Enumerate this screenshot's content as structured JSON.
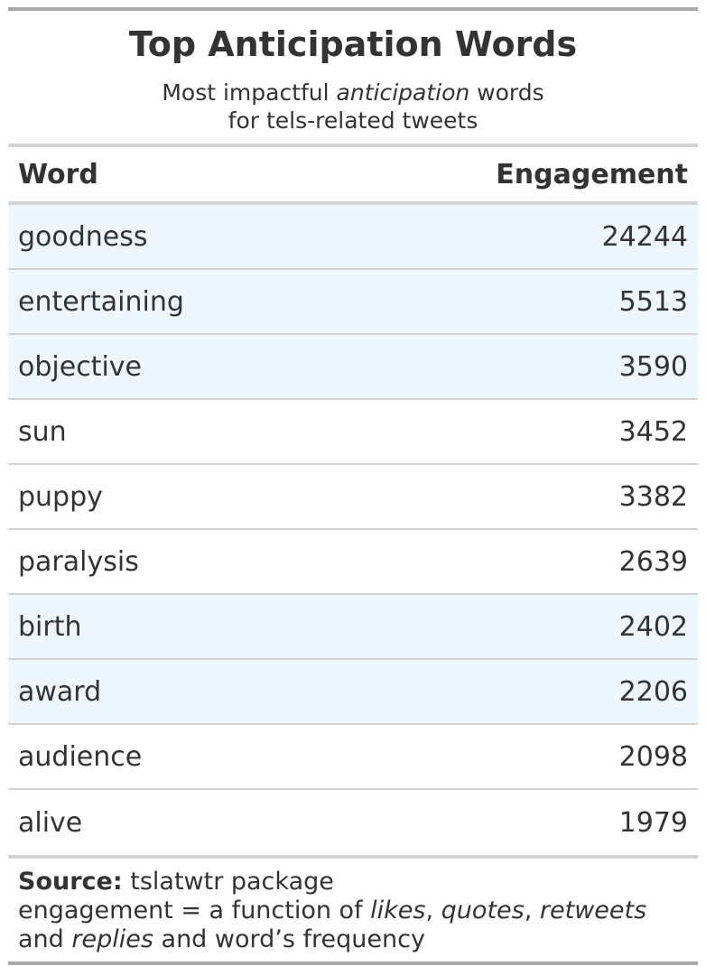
{
  "header": {
    "title": "Top Anticipation Words",
    "subtitle_part1": "Most impactful ",
    "subtitle_italic": "anticipation",
    "subtitle_part2": " words",
    "subtitle_line2": "for tels-related tweets"
  },
  "columns": {
    "word": "Word",
    "engagement": "Engagement"
  },
  "rows": [
    {
      "word": "goodness",
      "engagement": "24244",
      "highlight": true
    },
    {
      "word": "entertaining",
      "engagement": "5513",
      "highlight": true
    },
    {
      "word": "objective",
      "engagement": "3590",
      "highlight": true
    },
    {
      "word": "sun",
      "engagement": "3452",
      "highlight": false
    },
    {
      "word": "puppy",
      "engagement": "3382",
      "highlight": false
    },
    {
      "word": "paralysis",
      "engagement": "2639",
      "highlight": false
    },
    {
      "word": "birth",
      "engagement": "2402",
      "highlight": true
    },
    {
      "word": "award",
      "engagement": "2206",
      "highlight": true
    },
    {
      "word": "audience",
      "engagement": "2098",
      "highlight": false
    },
    {
      "word": "alive",
      "engagement": "1979",
      "highlight": false
    }
  ],
  "footer": {
    "source_label": "Source:",
    "source_text": " tslatwtr package",
    "line2_prefix": "engagement = a function of ",
    "likes": "likes",
    "comma1": ", ",
    "quotes": "quotes",
    "comma2": ", ",
    "retweets": "retweets",
    "line3_prefix": "and ",
    "replies": "replies",
    "line3_suffix": " and word’s frequency"
  },
  "colors": {
    "text": "#333333",
    "highlight_row": "#eef6fe",
    "rule_dark": "#a8a8a8",
    "rule_light": "#d3d3d3"
  }
}
